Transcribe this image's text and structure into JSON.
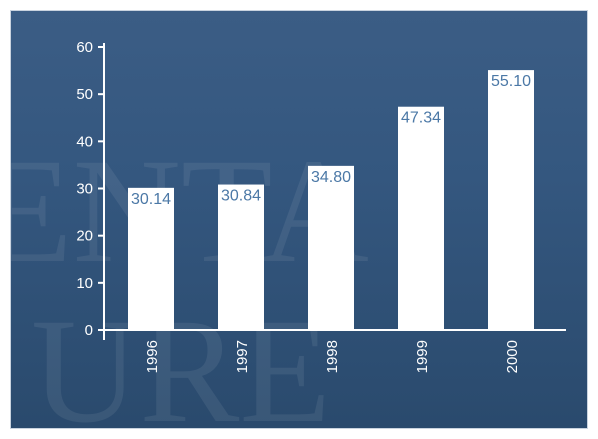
{
  "chart_data": {
    "type": "bar",
    "categories": [
      "1996",
      "1997",
      "1998",
      "1999",
      "2000"
    ],
    "values": [
      30.14,
      30.84,
      34.8,
      47.34,
      55.1
    ],
    "value_labels": [
      "30.14",
      "30.84",
      "34.80",
      "47.34",
      "55.10"
    ],
    "title": "",
    "xlabel": "",
    "ylabel": "",
    "ylim": [
      0,
      60
    ],
    "yticks": [
      0,
      10,
      20,
      30,
      40,
      50,
      60
    ],
    "grid": false,
    "legend": "none",
    "colors": {
      "background": "#34577f",
      "bar": "#ffffff",
      "data_label": "#4b78a6",
      "axis": "#ffffff"
    }
  }
}
